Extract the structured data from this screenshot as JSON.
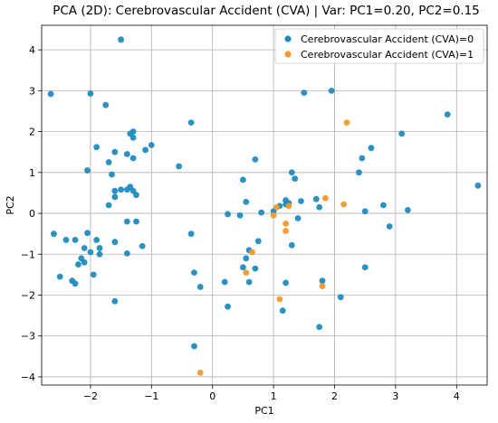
{
  "chart_data": {
    "type": "scatter",
    "title": "PCA (2D): Cerebrovascular Accident (CVA)  |  Var: PC1=0.20, PC2=0.15",
    "xlabel": "PC1",
    "ylabel": "PC2",
    "xlim": [
      -2.8,
      4.5
    ],
    "ylim": [
      -4.2,
      4.6
    ],
    "xticks": [
      -2,
      -1,
      0,
      1,
      2,
      3,
      4
    ],
    "yticks": [
      -4,
      -3,
      -2,
      -1,
      0,
      1,
      2,
      3,
      4
    ],
    "grid": true,
    "legend_position": "top-right",
    "series": [
      {
        "name": "Cerebrovascular Accident (CVA)=0",
        "color": "#1f8bbf",
        "points": [
          [
            -2.65,
            2.92
          ],
          [
            -2.0,
            2.93
          ],
          [
            -1.75,
            2.65
          ],
          [
            -1.5,
            4.25
          ],
          [
            -1.35,
            1.95
          ],
          [
            -1.3,
            2.0
          ],
          [
            -1.3,
            1.85
          ],
          [
            -1.9,
            1.62
          ],
          [
            -1.6,
            1.5
          ],
          [
            -1.7,
            1.25
          ],
          [
            -1.4,
            1.45
          ],
          [
            -1.3,
            1.35
          ],
          [
            -1.1,
            1.55
          ],
          [
            -1.0,
            1.67
          ],
          [
            -2.05,
            1.05
          ],
          [
            -1.65,
            0.95
          ],
          [
            -1.6,
            0.55
          ],
          [
            -1.6,
            0.4
          ],
          [
            -1.5,
            0.58
          ],
          [
            -1.4,
            0.58
          ],
          [
            -1.35,
            0.65
          ],
          [
            -1.3,
            0.55
          ],
          [
            -1.25,
            0.45
          ],
          [
            -1.7,
            0.2
          ],
          [
            -1.4,
            -0.2
          ],
          [
            -1.25,
            -0.2
          ],
          [
            -2.6,
            -0.5
          ],
          [
            -2.05,
            -0.48
          ],
          [
            -2.4,
            -0.65
          ],
          [
            -2.25,
            -0.65
          ],
          [
            -1.9,
            -0.65
          ],
          [
            -1.85,
            -0.85
          ],
          [
            -1.6,
            -0.7
          ],
          [
            -1.15,
            -0.8
          ],
          [
            -2.1,
            -0.85
          ],
          [
            -2.0,
            -0.95
          ],
          [
            -1.85,
            -1.0
          ],
          [
            -1.4,
            -0.98
          ],
          [
            -2.15,
            -1.1
          ],
          [
            -2.2,
            -1.25
          ],
          [
            -2.1,
            -1.2
          ],
          [
            -1.95,
            -1.5
          ],
          [
            -2.5,
            -1.55
          ],
          [
            -2.3,
            -1.65
          ],
          [
            -2.25,
            -1.72
          ],
          [
            -1.6,
            -2.15
          ],
          [
            -0.35,
            2.22
          ],
          [
            -0.55,
            1.15
          ],
          [
            -0.35,
            -0.5
          ],
          [
            -0.3,
            -1.45
          ],
          [
            -0.2,
            -1.8
          ],
          [
            -0.3,
            -3.25
          ],
          [
            0.25,
            -0.02
          ],
          [
            0.2,
            -1.68
          ],
          [
            0.25,
            -2.28
          ],
          [
            0.45,
            -0.05
          ],
          [
            0.5,
            0.82
          ],
          [
            0.55,
            0.28
          ],
          [
            0.7,
            1.32
          ],
          [
            0.75,
            -0.68
          ],
          [
            0.6,
            -0.9
          ],
          [
            0.55,
            -1.1
          ],
          [
            0.5,
            -1.32
          ],
          [
            0.7,
            -1.35
          ],
          [
            0.6,
            -1.68
          ],
          [
            0.8,
            0.02
          ],
          [
            1.0,
            0.05
          ],
          [
            1.1,
            0.18
          ],
          [
            1.2,
            0.22
          ],
          [
            1.25,
            0.25
          ],
          [
            1.2,
            0.32
          ],
          [
            1.3,
            1.0
          ],
          [
            1.35,
            0.85
          ],
          [
            1.45,
            0.3
          ],
          [
            1.4,
            -0.12
          ],
          [
            1.3,
            -0.78
          ],
          [
            1.5,
            2.95
          ],
          [
            1.7,
            0.35
          ],
          [
            1.75,
            0.15
          ],
          [
            1.8,
            -1.65
          ],
          [
            1.75,
            -2.78
          ],
          [
            1.2,
            -1.7
          ],
          [
            1.15,
            -2.38
          ],
          [
            1.95,
            3.0
          ],
          [
            2.1,
            -2.05
          ],
          [
            2.4,
            1.0
          ],
          [
            2.45,
            1.35
          ],
          [
            2.6,
            1.6
          ],
          [
            2.5,
            0.05
          ],
          [
            2.8,
            0.2
          ],
          [
            2.9,
            -0.32
          ],
          [
            2.5,
            -1.32
          ],
          [
            3.1,
            1.95
          ],
          [
            3.2,
            0.08
          ],
          [
            3.85,
            2.42
          ],
          [
            4.35,
            0.68
          ]
        ]
      },
      {
        "name": "Cerebrovascular Accident (CVA)=1",
        "color": "#f4992a",
        "points": [
          [
            2.2,
            2.22
          ],
          [
            0.65,
            -0.95
          ],
          [
            0.55,
            -1.45
          ],
          [
            1.0,
            -0.05
          ],
          [
            1.05,
            0.15
          ],
          [
            1.2,
            -0.25
          ],
          [
            1.25,
            0.18
          ],
          [
            1.2,
            -0.43
          ],
          [
            1.85,
            0.37
          ],
          [
            2.15,
            0.22
          ],
          [
            1.8,
            -1.78
          ],
          [
            1.1,
            -2.1
          ],
          [
            -0.2,
            -3.9
          ]
        ]
      }
    ]
  }
}
